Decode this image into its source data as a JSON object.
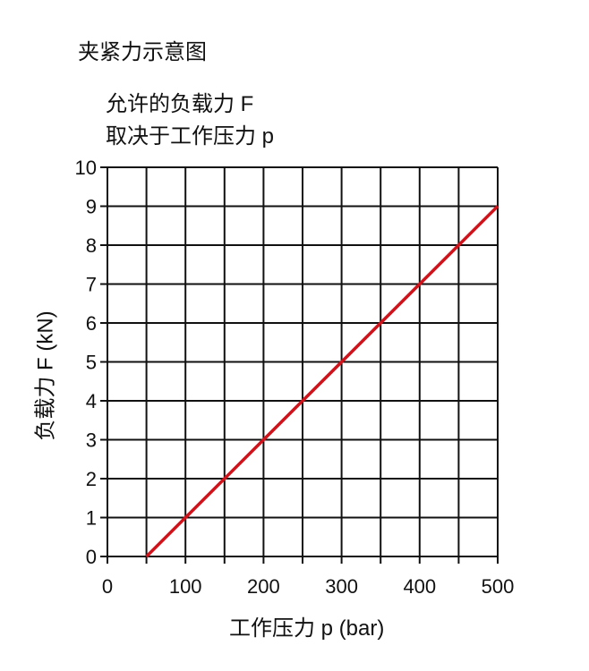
{
  "chart_data": {
    "type": "line",
    "title": "夹紧力示意图",
    "subtitle": [
      "允许的负载力 F",
      "取决于工作压力 p"
    ],
    "xlabel": "工作压力 p (bar)",
    "ylabel": "负载力 F (kN)",
    "xlim": [
      0,
      500
    ],
    "ylim": [
      0,
      10
    ],
    "xticks": [
      0,
      100,
      200,
      300,
      400,
      500
    ],
    "yticks": [
      0,
      1,
      2,
      3,
      4,
      5,
      6,
      7,
      8,
      9,
      10
    ],
    "x_grid_step": 50,
    "y_grid_step": 1,
    "grid": true,
    "series": [
      {
        "x": [
          50,
          100,
          150,
          200,
          250,
          300,
          350,
          400,
          450,
          500
        ],
        "y": [
          0,
          1,
          2,
          3,
          4,
          5,
          6,
          7,
          8,
          9
        ],
        "color": "#d0121b"
      }
    ]
  }
}
